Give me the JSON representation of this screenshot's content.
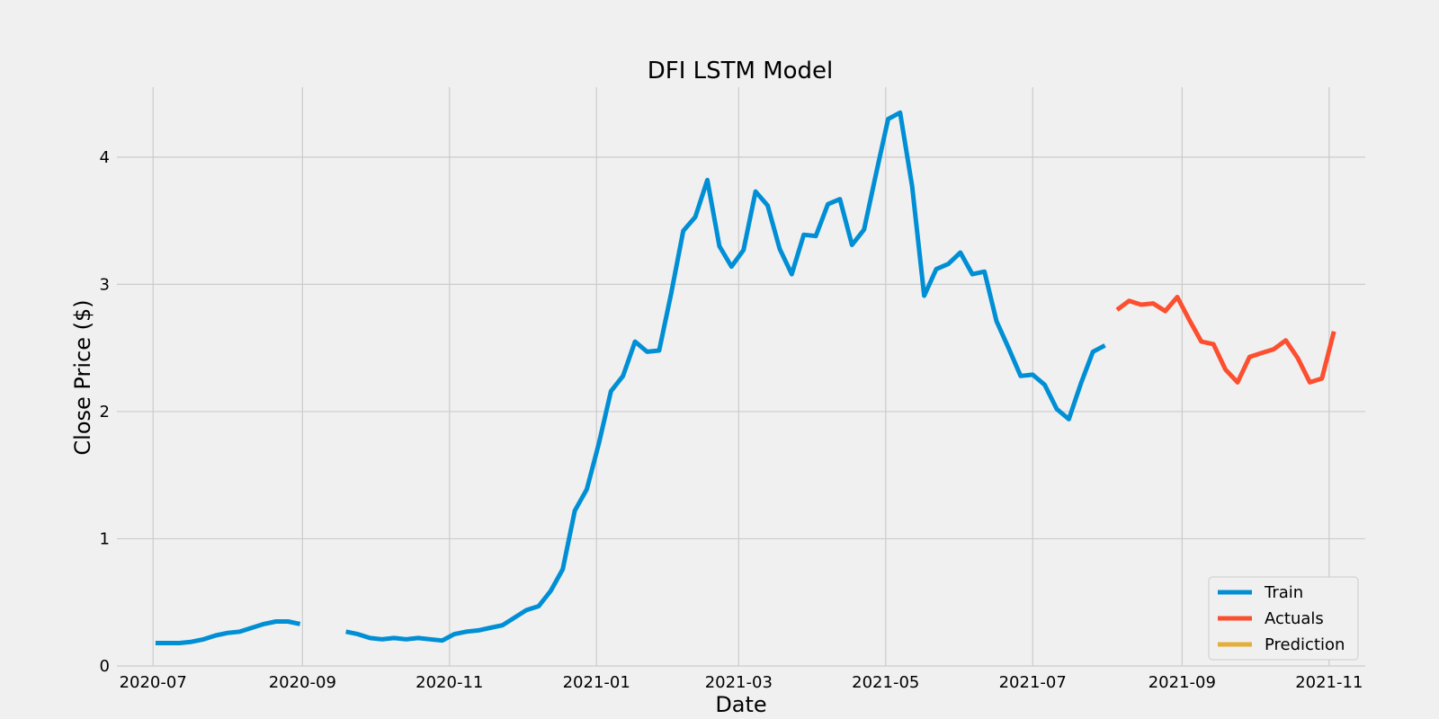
{
  "chart_data": {
    "type": "line",
    "title": "DFI LSTM Model",
    "xlabel": "Date",
    "ylabel": "Close Price ($)",
    "x_range": [
      "2020-06-16",
      "2021-11-16"
    ],
    "ylim": [
      0,
      4.55
    ],
    "x_ticks": [
      "2020-07",
      "2020-09",
      "2020-11",
      "2021-01",
      "2021-03",
      "2021-05",
      "2021-07",
      "2021-09",
      "2021-11"
    ],
    "y_ticks": [
      0,
      1,
      2,
      3,
      4
    ],
    "grid": true,
    "legend_position": "bottom-right",
    "series": [
      {
        "name": "Train",
        "color": "#008fd5",
        "points": [
          [
            "2020-07-02",
            0.18
          ],
          [
            "2020-07-07",
            0.18
          ],
          [
            "2020-07-12",
            0.18
          ],
          [
            "2020-07-17",
            0.19
          ],
          [
            "2020-07-22",
            0.21
          ],
          [
            "2020-07-27",
            0.24
          ],
          [
            "2020-08-01",
            0.26
          ],
          [
            "2020-08-06",
            0.27
          ],
          [
            "2020-08-11",
            0.3
          ],
          [
            "2020-08-16",
            0.33
          ],
          [
            "2020-08-21",
            0.35
          ],
          [
            "2020-08-26",
            0.35
          ],
          [
            "2020-08-31",
            0.33
          ],
          null,
          [
            "2020-09-19",
            0.27
          ],
          [
            "2020-09-24",
            0.25
          ],
          [
            "2020-09-29",
            0.22
          ],
          [
            "2020-10-04",
            0.21
          ],
          [
            "2020-10-09",
            0.22
          ],
          [
            "2020-10-14",
            0.21
          ],
          [
            "2020-10-19",
            0.22
          ],
          [
            "2020-10-24",
            0.21
          ],
          [
            "2020-10-29",
            0.2
          ],
          [
            "2020-11-03",
            0.25
          ],
          [
            "2020-11-08",
            0.27
          ],
          [
            "2020-11-13",
            0.28
          ],
          [
            "2020-11-18",
            0.3
          ],
          [
            "2020-11-23",
            0.32
          ],
          [
            "2020-11-28",
            0.38
          ],
          [
            "2020-12-03",
            0.44
          ],
          [
            "2020-12-08",
            0.47
          ],
          [
            "2020-12-13",
            0.59
          ],
          [
            "2020-12-18",
            0.76
          ],
          [
            "2020-12-23",
            1.22
          ],
          [
            "2020-12-28",
            1.39
          ],
          [
            "2021-01-02",
            1.75
          ],
          [
            "2021-01-07",
            2.16
          ],
          [
            "2021-01-12",
            2.28
          ],
          [
            "2021-01-17",
            2.55
          ],
          [
            "2021-01-22",
            2.47
          ],
          [
            "2021-01-27",
            2.48
          ],
          [
            "2021-02-01",
            2.93
          ],
          [
            "2021-02-06",
            3.42
          ],
          [
            "2021-02-11",
            3.53
          ],
          [
            "2021-02-16",
            3.82
          ],
          [
            "2021-02-21",
            3.3
          ],
          [
            "2021-02-26",
            3.14
          ],
          [
            "2021-03-03",
            3.27
          ],
          [
            "2021-03-08",
            3.73
          ],
          [
            "2021-03-13",
            3.62
          ],
          [
            "2021-03-18",
            3.28
          ],
          [
            "2021-03-23",
            3.08
          ],
          [
            "2021-03-28",
            3.39
          ],
          [
            "2021-04-02",
            3.38
          ],
          [
            "2021-04-07",
            3.63
          ],
          [
            "2021-04-12",
            3.67
          ],
          [
            "2021-04-17",
            3.31
          ],
          [
            "2021-04-22",
            3.43
          ],
          [
            "2021-04-27",
            3.87
          ],
          [
            "2021-05-02",
            4.3
          ],
          [
            "2021-05-07",
            4.35
          ],
          [
            "2021-05-12",
            3.77
          ],
          [
            "2021-05-17",
            2.91
          ],
          [
            "2021-05-22",
            3.12
          ],
          [
            "2021-05-27",
            3.16
          ],
          [
            "2021-06-01",
            3.25
          ],
          [
            "2021-06-06",
            3.08
          ],
          [
            "2021-06-11",
            3.1
          ],
          [
            "2021-06-16",
            2.71
          ],
          [
            "2021-06-21",
            2.5
          ],
          [
            "2021-06-26",
            2.28
          ],
          [
            "2021-07-01",
            2.29
          ],
          [
            "2021-07-06",
            2.21
          ],
          [
            "2021-07-11",
            2.02
          ],
          [
            "2021-07-16",
            1.94
          ],
          [
            "2021-07-21",
            2.22
          ],
          [
            "2021-07-26",
            2.47
          ],
          [
            "2021-07-31",
            2.52
          ]
        ]
      },
      {
        "name": "Actuals",
        "color": "#fc4f30",
        "points": [
          [
            "2021-08-05",
            2.8
          ],
          [
            "2021-08-10",
            2.87
          ],
          [
            "2021-08-15",
            2.84
          ],
          [
            "2021-08-20",
            2.85
          ],
          [
            "2021-08-25",
            2.79
          ],
          [
            "2021-08-30",
            2.9
          ],
          [
            "2021-09-04",
            2.72
          ],
          [
            "2021-09-09",
            2.55
          ],
          [
            "2021-09-14",
            2.53
          ],
          [
            "2021-09-19",
            2.33
          ],
          [
            "2021-09-24",
            2.23
          ],
          [
            "2021-09-29",
            2.43
          ],
          [
            "2021-10-04",
            2.46
          ],
          [
            "2021-10-09",
            2.49
          ],
          [
            "2021-10-14",
            2.56
          ],
          [
            "2021-10-19",
            2.42
          ],
          [
            "2021-10-24",
            2.23
          ],
          [
            "2021-10-29",
            2.26
          ],
          [
            "2021-11-03",
            2.63
          ]
        ]
      },
      {
        "name": "Prediction",
        "color": "#e5ae38",
        "points": []
      }
    ]
  }
}
